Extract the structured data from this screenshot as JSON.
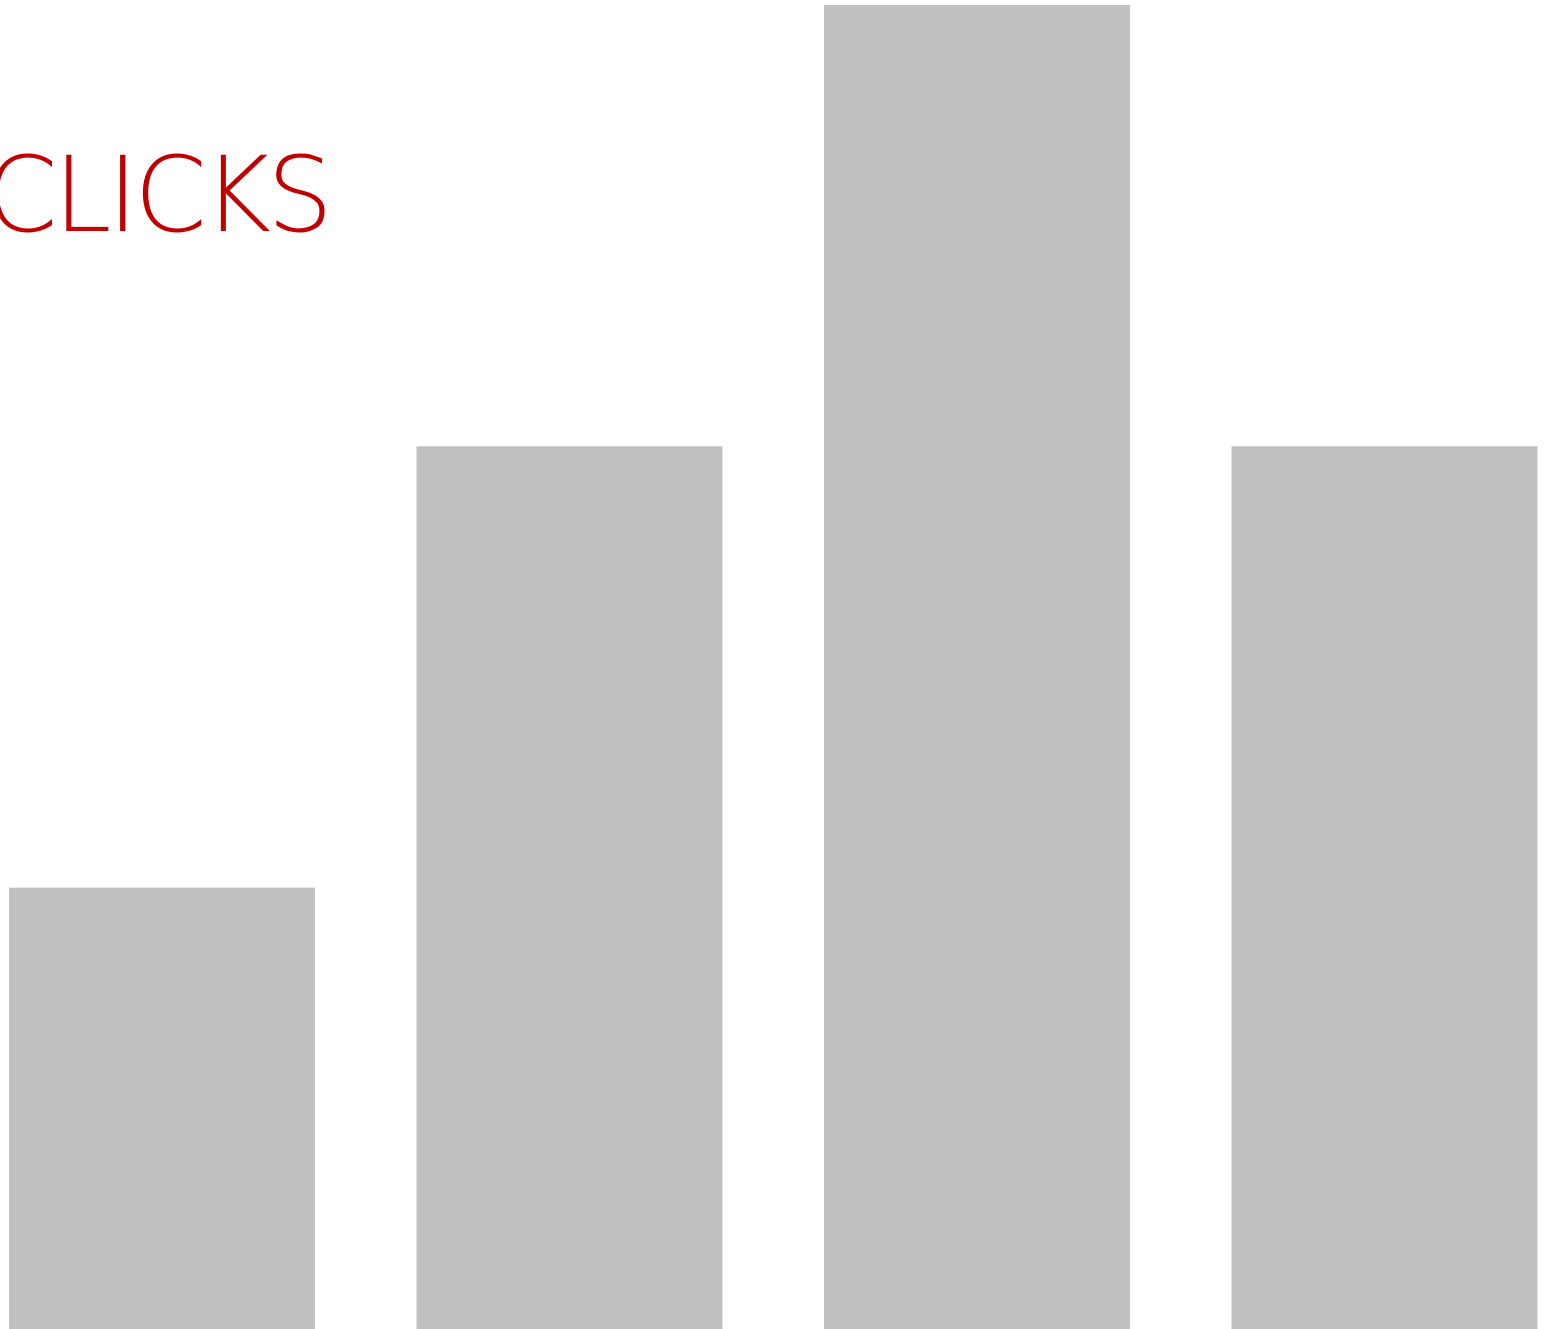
{
  "chart_data": {
    "type": "bar",
    "title": "CLICKS",
    "categories": [
      "",
      "",
      "",
      ""
    ],
    "values": [
      1,
      2,
      3,
      2
    ],
    "ylim": [
      0,
      3
    ],
    "xlabel": "",
    "ylabel": "",
    "grid": false,
    "axes_visible": false,
    "bar_color": "#c0c0c0",
    "title_color": "#c00000",
    "background": "#ffffff"
  }
}
